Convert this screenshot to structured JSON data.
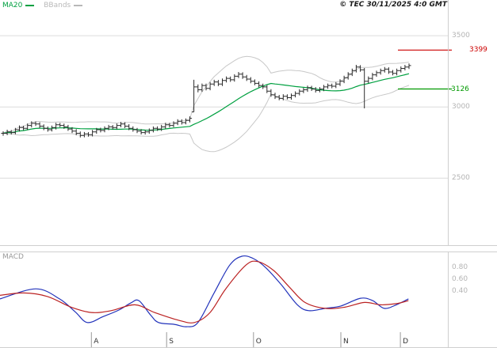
{
  "header": {
    "legend": [
      {
        "label": "MA20",
        "color": "#00a040"
      },
      {
        "label": "BBands",
        "color": "#b8b8b8"
      }
    ],
    "copyright": "© TEC 30/11/2025 4:0 GMT"
  },
  "x_axis": {
    "ticks": [
      {
        "label": "A",
        "pos": 0.204
      },
      {
        "label": "S",
        "pos": 0.372
      },
      {
        "label": "O",
        "pos": 0.566
      },
      {
        "label": "N",
        "pos": 0.761
      },
      {
        "label": "D",
        "pos": 0.894
      }
    ]
  },
  "chart_data": [
    {
      "id": "price-panel",
      "type": "ohlc-bar",
      "title": "",
      "xlabel": "",
      "ylabel": "",
      "ylim": [
        2030,
        3750
      ],
      "grid": true,
      "color": "#2b2b2b",
      "y_ticks": [
        {
          "label": "3500",
          "value": 3500
        },
        {
          "label": "3000",
          "value": 3000
        },
        {
          "label": "2500",
          "value": 2500
        }
      ],
      "levels": [
        {
          "label": "3399",
          "value": 3399,
          "color": "#cc0000"
        },
        {
          "label": "3126",
          "value": 3126,
          "color": "#009900"
        }
      ],
      "overlays": {
        "ma20": {
          "name": "MA20",
          "period": 20,
          "color": "#00a040"
        },
        "bbands": {
          "name": "BBands",
          "period": 20,
          "mult": 2,
          "color": "#c8c8c8"
        }
      },
      "bars_format": [
        "high",
        "low",
        "close"
      ],
      "bars": [
        [
          2829,
          2798,
          2815
        ],
        [
          2840,
          2802,
          2825
        ],
        [
          2838,
          2806,
          2820
        ],
        [
          2853,
          2808,
          2840
        ],
        [
          2870,
          2828,
          2855
        ],
        [
          2868,
          2836,
          2850
        ],
        [
          2884,
          2838,
          2870
        ],
        [
          2899,
          2856,
          2885
        ],
        [
          2898,
          2866,
          2880
        ],
        [
          2893,
          2851,
          2865
        ],
        [
          2878,
          2837,
          2850
        ],
        [
          2863,
          2826,
          2840
        ],
        [
          2869,
          2828,
          2855
        ],
        [
          2889,
          2842,
          2875
        ],
        [
          2888,
          2857,
          2870
        ],
        [
          2883,
          2846,
          2860
        ],
        [
          2874,
          2832,
          2845
        ],
        [
          2858,
          2817,
          2830
        ],
        [
          2844,
          2801,
          2815
        ],
        [
          2828,
          2786,
          2800
        ],
        [
          2824,
          2787,
          2810
        ],
        [
          2823,
          2791,
          2805
        ],
        [
          2839,
          2793,
          2825
        ],
        [
          2853,
          2812,
          2840
        ],
        [
          2854,
          2821,
          2835
        ],
        [
          2864,
          2822,
          2850
        ],
        [
          2874,
          2837,
          2860
        ],
        [
          2873,
          2841,
          2855
        ],
        [
          2884,
          2843,
          2870
        ],
        [
          2895,
          2857,
          2880
        ],
        [
          2893,
          2851,
          2865
        ],
        [
          2879,
          2837,
          2850
        ],
        [
          2864,
          2826,
          2840
        ],
        [
          2853,
          2816,
          2830
        ],
        [
          2844,
          2807,
          2820
        ],
        [
          2839,
          2806,
          2825
        ],
        [
          2849,
          2812,
          2835
        ],
        [
          2863,
          2821,
          2850
        ],
        [
          2864,
          2832,
          2845
        ],
        [
          2874,
          2831,
          2860
        ],
        [
          2889,
          2847,
          2875
        ],
        [
          2888,
          2856,
          2870
        ],
        [
          2899,
          2857,
          2885
        ],
        [
          2914,
          2872,
          2900
        ],
        [
          2913,
          2876,
          2890
        ],
        [
          2919,
          2877,
          2905
        ],
        [
          2934,
          2891,
          2920
        ],
        [
          3190,
          2965,
          3140
        ],
        [
          3158,
          3102,
          3120
        ],
        [
          3164,
          3106,
          3150
        ],
        [
          3163,
          3116,
          3130
        ],
        [
          3174,
          3117,
          3160
        ],
        [
          3190,
          3147,
          3175
        ],
        [
          3189,
          3146,
          3160
        ],
        [
          3199,
          3147,
          3185
        ],
        [
          3214,
          3172,
          3200
        ],
        [
          3213,
          3176,
          3190
        ],
        [
          3229,
          3177,
          3215
        ],
        [
          3245,
          3202,
          3230
        ],
        [
          3243,
          3196,
          3210
        ],
        [
          3224,
          3182,
          3195
        ],
        [
          3209,
          3166,
          3180
        ],
        [
          3193,
          3152,
          3165
        ],
        [
          3179,
          3137,
          3150
        ],
        [
          3163,
          3126,
          3140
        ],
        [
          3153,
          3097,
          3110
        ],
        [
          3124,
          3071,
          3085
        ],
        [
          3099,
          3056,
          3070
        ],
        [
          3084,
          3047,
          3060
        ],
        [
          3089,
          3046,
          3075
        ],
        [
          3088,
          3052,
          3065
        ],
        [
          3094,
          3051,
          3080
        ],
        [
          3109,
          3067,
          3095
        ],
        [
          3124,
          3081,
          3110
        ],
        [
          3134,
          3097,
          3120
        ],
        [
          3149,
          3106,
          3135
        ],
        [
          3148,
          3112,
          3125
        ],
        [
          3139,
          3101,
          3115
        ],
        [
          3139,
          3102,
          3125
        ],
        [
          3154,
          3111,
          3140
        ],
        [
          3164,
          3127,
          3150
        ],
        [
          3163,
          3131,
          3145
        ],
        [
          3174,
          3132,
          3160
        ],
        [
          3194,
          3147,
          3180
        ],
        [
          3219,
          3167,
          3205
        ],
        [
          3244,
          3192,
          3230
        ],
        [
          3269,
          3217,
          3255
        ],
        [
          3295,
          3242,
          3280
        ],
        [
          3293,
          3246,
          3260
        ],
        [
          3273,
          2990,
          3180
        ],
        [
          3214,
          3166,
          3200
        ],
        [
          3239,
          3187,
          3225
        ],
        [
          3254,
          3211,
          3240
        ],
        [
          3269,
          3226,
          3255
        ],
        [
          3280,
          3241,
          3265
        ],
        [
          3278,
          3232,
          3245
        ],
        [
          3259,
          3221,
          3235
        ],
        [
          3269,
          3222,
          3255
        ],
        [
          3284,
          3241,
          3270
        ],
        [
          3295,
          3256,
          3280
        ],
        [
          3305,
          3266,
          3290
        ]
      ]
    },
    {
      "id": "macd-panel",
      "type": "line",
      "label": "MACD",
      "ylim": [
        -0.56,
        1.07
      ],
      "grid": false,
      "y_ticks": [
        {
          "label": "0.80",
          "value": 0.8
        },
        {
          "label": "0.60",
          "value": 0.6
        },
        {
          "label": "0.40",
          "value": 0.4
        }
      ],
      "series": [
        {
          "name": "macd",
          "color": "#2233bb",
          "points": [
            [
              0.0,
              0.27
            ],
            [
              0.08,
              0.44
            ],
            [
              0.133,
              0.27
            ],
            [
              0.168,
              0.05
            ],
            [
              0.195,
              -0.13
            ],
            [
              0.23,
              -0.03
            ],
            [
              0.265,
              0.08
            ],
            [
              0.292,
              0.2
            ],
            [
              0.31,
              0.24
            ],
            [
              0.336,
              0.0
            ],
            [
              0.354,
              -0.13
            ],
            [
              0.389,
              -0.16
            ],
            [
              0.416,
              -0.2
            ],
            [
              0.442,
              -0.13
            ],
            [
              0.478,
              0.37
            ],
            [
              0.513,
              0.84
            ],
            [
              0.54,
              0.99
            ],
            [
              0.566,
              0.95
            ],
            [
              0.593,
              0.8
            ],
            [
              0.628,
              0.51
            ],
            [
              0.664,
              0.17
            ],
            [
              0.69,
              0.07
            ],
            [
              0.726,
              0.11
            ],
            [
              0.761,
              0.15
            ],
            [
              0.805,
              0.28
            ],
            [
              0.832,
              0.24
            ],
            [
              0.858,
              0.11
            ],
            [
              0.885,
              0.17
            ],
            [
              0.912,
              0.27
            ]
          ]
        },
        {
          "name": "signal",
          "color": "#bb2222",
          "points": [
            [
              0.0,
              0.33
            ],
            [
              0.053,
              0.37
            ],
            [
              0.106,
              0.31
            ],
            [
              0.159,
              0.13
            ],
            [
              0.204,
              0.04
            ],
            [
              0.248,
              0.07
            ],
            [
              0.301,
              0.17
            ],
            [
              0.345,
              0.04
            ],
            [
              0.398,
              -0.09
            ],
            [
              0.434,
              -0.13
            ],
            [
              0.469,
              0.04
            ],
            [
              0.504,
              0.44
            ],
            [
              0.549,
              0.84
            ],
            [
              0.575,
              0.9
            ],
            [
              0.611,
              0.75
            ],
            [
              0.646,
              0.47
            ],
            [
              0.681,
              0.21
            ],
            [
              0.726,
              0.11
            ],
            [
              0.77,
              0.13
            ],
            [
              0.814,
              0.21
            ],
            [
              0.85,
              0.17
            ],
            [
              0.885,
              0.19
            ],
            [
              0.912,
              0.24
            ]
          ]
        }
      ]
    }
  ]
}
